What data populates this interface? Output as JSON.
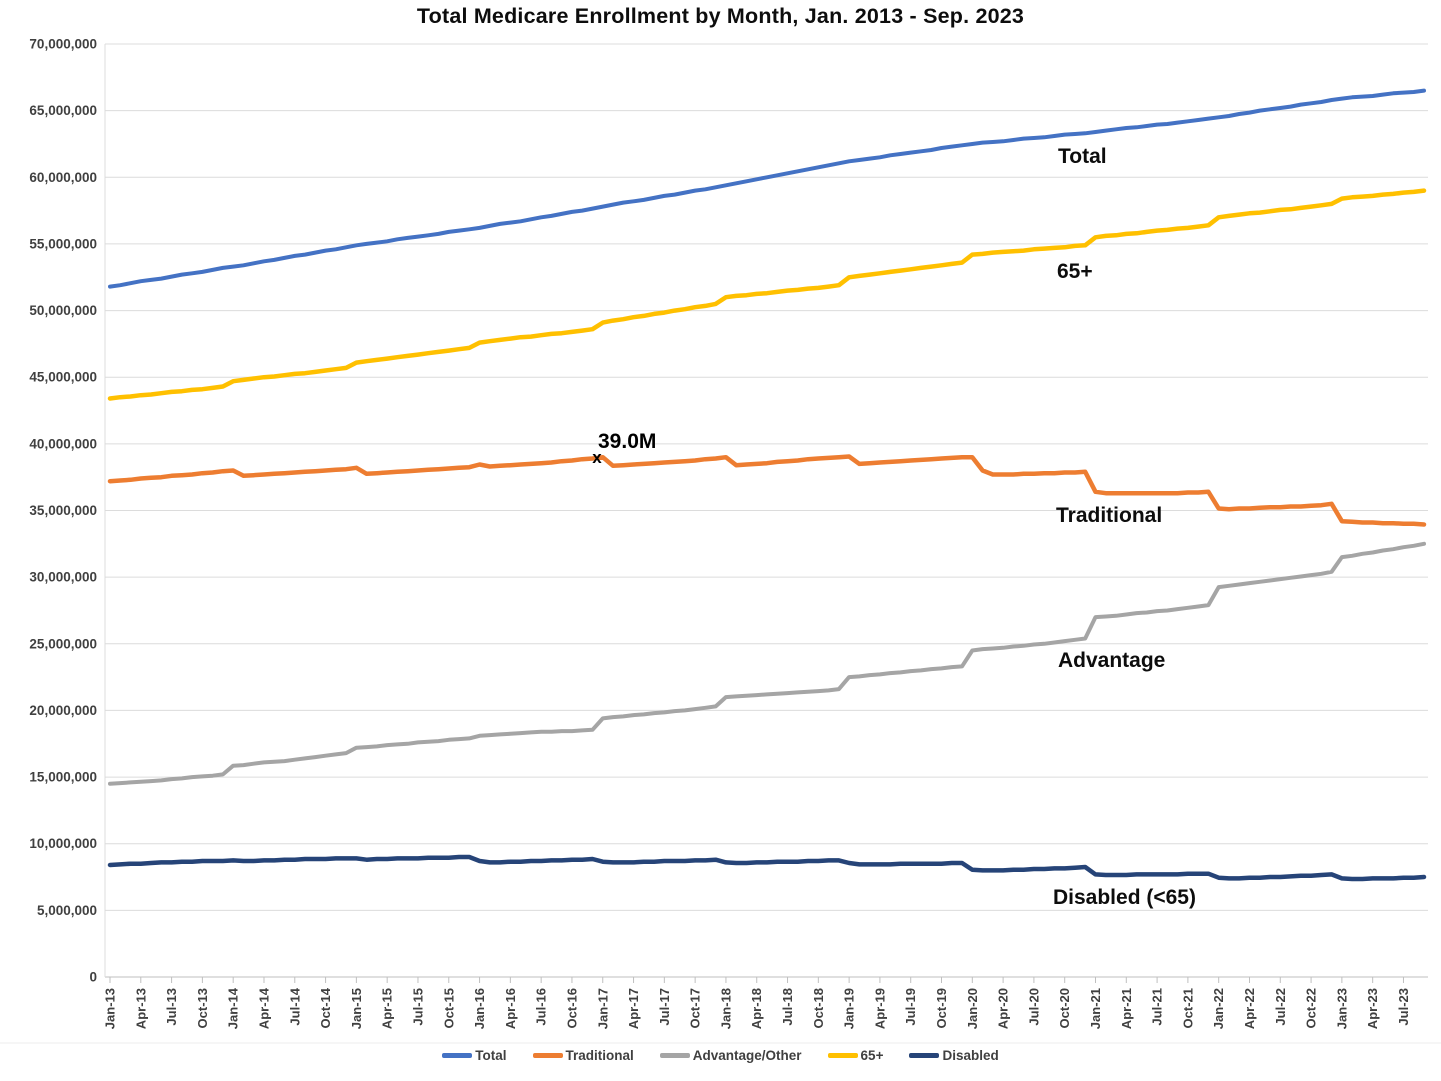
{
  "title": "Total Medicare Enrollment by Month, Jan. 2013 - Sep. 2023",
  "annotation": {
    "label": "39.0M",
    "marker_glyph": "x",
    "series": "Traditional",
    "month": "Jan-17",
    "value": 39.0
  },
  "y_axis": {
    "tick_labels": [
      "0",
      "5,000,000",
      "10,000,000",
      "15,000,000",
      "20,000,000",
      "25,000,000",
      "30,000,000",
      "35,000,000",
      "40,000,000",
      "45,000,000",
      "50,000,000",
      "55,000,000",
      "60,000,000",
      "65,000,000",
      "70,000,000"
    ]
  },
  "x_axis": {
    "tick_labels": [
      "Jan-13",
      "Apr-13",
      "Jul-13",
      "Oct-13",
      "Jan-14",
      "Apr-14",
      "Jul-14",
      "Oct-14",
      "Jan-15",
      "Apr-15",
      "Jul-15",
      "Oct-15",
      "Jan-16",
      "Apr-16",
      "Jul-16",
      "Oct-16",
      "Jan-17",
      "Apr-17",
      "Jul-17",
      "Oct-17",
      "Jan-18",
      "Apr-18",
      "Jul-18",
      "Oct-18",
      "Jan-19",
      "Apr-19",
      "Jul-19",
      "Oct-19",
      "Jan-20",
      "Apr-20",
      "Jul-20",
      "Oct-20",
      "Jan-21",
      "Apr-21",
      "Jul-21",
      "Oct-21",
      "Jan-22",
      "Apr-22",
      "Jul-22",
      "Oct-22",
      "Jan-23",
      "Apr-23",
      "Jul-23"
    ]
  },
  "legend": {
    "items": [
      {
        "label": "Total",
        "color": "#4472C4"
      },
      {
        "label": "Traditional",
        "color": "#ED7D31"
      },
      {
        "label": "Advantage/Other",
        "color": "#A5A5A5"
      },
      {
        "label": "65+",
        "color": "#FFC000"
      },
      {
        "label": "Disabled",
        "color": "#264478"
      }
    ]
  },
  "inline_labels": [
    {
      "series": "Total",
      "text": "Total"
    },
    {
      "series": "65+",
      "text": "65+"
    },
    {
      "series": "Traditional",
      "text": "Traditional"
    },
    {
      "series": "Advantage/Other",
      "text": "Advantage"
    },
    {
      "series": "Disabled",
      "text": "Disabled (<65)"
    }
  ],
  "chart_data": {
    "type": "line",
    "title": "Total Medicare Enrollment by Month, Jan. 2013 - Sep. 2023",
    "x_start": "Jan-2013",
    "x_end": "Sep-2023",
    "frequency": "monthly",
    "units": "persons (millions)",
    "ylim": [
      0,
      70000000
    ],
    "grid": "horizontal",
    "legend_position": "bottom",
    "series": [
      {
        "name": "Total",
        "color": "#4472C4",
        "values_millions": [
          51.8,
          51.9,
          52.05,
          52.2,
          52.3,
          52.4,
          52.55,
          52.7,
          52.8,
          52.9,
          53.05,
          53.2,
          53.3,
          53.4,
          53.55,
          53.7,
          53.8,
          53.95,
          54.1,
          54.2,
          54.35,
          54.5,
          54.6,
          54.75,
          54.9,
          55.0,
          55.1,
          55.2,
          55.35,
          55.45,
          55.55,
          55.65,
          55.75,
          55.9,
          56.0,
          56.1,
          56.2,
          56.35,
          56.5,
          56.6,
          56.7,
          56.85,
          57.0,
          57.1,
          57.25,
          57.4,
          57.5,
          57.65,
          57.8,
          57.95,
          58.1,
          58.2,
          58.3,
          58.45,
          58.6,
          58.7,
          58.85,
          59.0,
          59.1,
          59.25,
          59.4,
          59.55,
          59.7,
          59.85,
          60.0,
          60.15,
          60.3,
          60.45,
          60.6,
          60.75,
          60.9,
          61.05,
          61.2,
          61.3,
          61.4,
          61.5,
          61.65,
          61.75,
          61.85,
          61.95,
          62.05,
          62.2,
          62.3,
          62.4,
          62.5,
          62.6,
          62.65,
          62.7,
          62.8,
          62.9,
          62.95,
          63.0,
          63.1,
          63.2,
          63.25,
          63.3,
          63.4,
          63.5,
          63.6,
          63.7,
          63.75,
          63.85,
          63.95,
          64.0,
          64.1,
          64.2,
          64.3,
          64.4,
          64.5,
          64.6,
          64.75,
          64.85,
          65.0,
          65.1,
          65.2,
          65.3,
          65.45,
          65.55,
          65.65,
          65.8,
          65.9,
          66.0,
          66.05,
          66.1,
          66.2,
          66.3,
          66.35,
          66.4,
          66.5
        ]
      },
      {
        "name": "65+",
        "color": "#FFC000",
        "values_millions": [
          43.4,
          43.5,
          43.55,
          43.65,
          43.7,
          43.8,
          43.9,
          43.95,
          44.05,
          44.1,
          44.2,
          44.3,
          44.7,
          44.8,
          44.9,
          45.0,
          45.05,
          45.15,
          45.25,
          45.3,
          45.4,
          45.5,
          45.6,
          45.7,
          46.1,
          46.2,
          46.3,
          46.4,
          46.5,
          46.6,
          46.7,
          46.8,
          46.9,
          47.0,
          47.1,
          47.2,
          47.6,
          47.7,
          47.8,
          47.9,
          48.0,
          48.05,
          48.15,
          48.25,
          48.3,
          48.4,
          48.5,
          48.6,
          49.1,
          49.25,
          49.35,
          49.5,
          49.6,
          49.75,
          49.85,
          50.0,
          50.1,
          50.25,
          50.35,
          50.5,
          51.0,
          51.1,
          51.15,
          51.25,
          51.3,
          51.4,
          51.5,
          51.55,
          51.65,
          51.7,
          51.8,
          51.9,
          52.5,
          52.6,
          52.7,
          52.8,
          52.9,
          53.0,
          53.1,
          53.2,
          53.3,
          53.4,
          53.5,
          53.6,
          54.2,
          54.25,
          54.35,
          54.4,
          54.45,
          54.5,
          54.6,
          54.65,
          54.7,
          54.75,
          54.85,
          54.9,
          55.5,
          55.6,
          55.65,
          55.75,
          55.8,
          55.9,
          56.0,
          56.05,
          56.15,
          56.2,
          56.3,
          56.4,
          57.0,
          57.1,
          57.2,
          57.3,
          57.35,
          57.45,
          57.55,
          57.6,
          57.7,
          57.8,
          57.9,
          58.0,
          58.4,
          58.5,
          58.55,
          58.6,
          58.7,
          58.75,
          58.85,
          58.9,
          59.0
        ]
      },
      {
        "name": "Traditional",
        "color": "#ED7D31",
        "values_millions": [
          37.2,
          37.25,
          37.3,
          37.4,
          37.45,
          37.5,
          37.6,
          37.65,
          37.7,
          37.8,
          37.85,
          37.95,
          38.0,
          37.6,
          37.65,
          37.7,
          37.75,
          37.8,
          37.85,
          37.9,
          37.95,
          38.0,
          38.05,
          38.1,
          38.2,
          37.75,
          37.8,
          37.85,
          37.9,
          37.95,
          38.0,
          38.05,
          38.1,
          38.15,
          38.2,
          38.25,
          38.45,
          38.3,
          38.35,
          38.4,
          38.45,
          38.5,
          38.55,
          38.6,
          38.7,
          38.75,
          38.85,
          38.9,
          39.0,
          38.35,
          38.4,
          38.45,
          38.5,
          38.55,
          38.6,
          38.65,
          38.7,
          38.75,
          38.85,
          38.9,
          39.0,
          38.4,
          38.45,
          38.5,
          38.55,
          38.65,
          38.7,
          38.75,
          38.85,
          38.9,
          38.95,
          39.0,
          39.05,
          38.5,
          38.55,
          38.6,
          38.65,
          38.7,
          38.75,
          38.8,
          38.85,
          38.9,
          38.95,
          39.0,
          39.0,
          38.0,
          37.7,
          37.7,
          37.7,
          37.75,
          37.75,
          37.8,
          37.8,
          37.85,
          37.85,
          37.9,
          36.4,
          36.3,
          36.3,
          36.3,
          36.3,
          36.3,
          36.3,
          36.3,
          36.3,
          36.35,
          36.35,
          36.4,
          35.15,
          35.1,
          35.15,
          35.15,
          35.2,
          35.25,
          35.25,
          35.3,
          35.3,
          35.35,
          35.4,
          35.5,
          34.2,
          34.15,
          34.1,
          34.1,
          34.05,
          34.05,
          34.0,
          34.0,
          33.95
        ]
      },
      {
        "name": "Advantage/Other",
        "color": "#A5A5A5",
        "values_millions": [
          14.5,
          14.55,
          14.6,
          14.65,
          14.7,
          14.75,
          14.85,
          14.9,
          15.0,
          15.05,
          15.1,
          15.2,
          15.85,
          15.9,
          16.0,
          16.1,
          16.15,
          16.2,
          16.3,
          16.4,
          16.5,
          16.6,
          16.7,
          16.8,
          17.2,
          17.25,
          17.3,
          17.4,
          17.45,
          17.5,
          17.6,
          17.65,
          17.7,
          17.8,
          17.85,
          17.9,
          18.1,
          18.15,
          18.2,
          18.25,
          18.3,
          18.35,
          18.4,
          18.4,
          18.45,
          18.45,
          18.5,
          18.55,
          19.4,
          19.5,
          19.55,
          19.65,
          19.7,
          19.8,
          19.85,
          19.95,
          20.0,
          20.1,
          20.2,
          20.3,
          21.0,
          21.05,
          21.1,
          21.15,
          21.2,
          21.25,
          21.3,
          21.35,
          21.4,
          21.45,
          21.5,
          21.6,
          22.5,
          22.55,
          22.65,
          22.7,
          22.8,
          22.85,
          22.95,
          23.0,
          23.1,
          23.15,
          23.25,
          23.3,
          24.5,
          24.6,
          24.65,
          24.7,
          24.8,
          24.85,
          24.95,
          25.0,
          25.1,
          25.2,
          25.3,
          25.4,
          27.0,
          27.05,
          27.1,
          27.2,
          27.3,
          27.35,
          27.45,
          27.5,
          27.6,
          27.7,
          27.8,
          27.9,
          29.25,
          29.35,
          29.45,
          29.55,
          29.65,
          29.75,
          29.85,
          29.95,
          30.05,
          30.15,
          30.25,
          30.4,
          31.5,
          31.6,
          31.75,
          31.85,
          32.0,
          32.1,
          32.25,
          32.35,
          32.5
        ]
      },
      {
        "name": "Disabled",
        "color": "#264478",
        "values_millions": [
          8.4,
          8.45,
          8.5,
          8.5,
          8.55,
          8.6,
          8.6,
          8.65,
          8.65,
          8.7,
          8.7,
          8.7,
          8.75,
          8.7,
          8.7,
          8.75,
          8.75,
          8.8,
          8.8,
          8.85,
          8.85,
          8.85,
          8.9,
          8.9,
          8.9,
          8.8,
          8.85,
          8.85,
          8.9,
          8.9,
          8.9,
          8.95,
          8.95,
          8.95,
          9.0,
          9.0,
          8.7,
          8.6,
          8.6,
          8.65,
          8.65,
          8.7,
          8.7,
          8.75,
          8.75,
          8.8,
          8.8,
          8.85,
          8.65,
          8.6,
          8.6,
          8.6,
          8.65,
          8.65,
          8.7,
          8.7,
          8.7,
          8.75,
          8.75,
          8.8,
          8.6,
          8.55,
          8.55,
          8.6,
          8.6,
          8.65,
          8.65,
          8.65,
          8.7,
          8.7,
          8.75,
          8.75,
          8.55,
          8.45,
          8.45,
          8.45,
          8.45,
          8.5,
          8.5,
          8.5,
          8.5,
          8.5,
          8.55,
          8.55,
          8.05,
          8.0,
          8.0,
          8.0,
          8.05,
          8.05,
          8.1,
          8.1,
          8.15,
          8.15,
          8.2,
          8.25,
          7.7,
          7.65,
          7.65,
          7.65,
          7.7,
          7.7,
          7.7,
          7.7,
          7.7,
          7.75,
          7.75,
          7.75,
          7.45,
          7.4,
          7.4,
          7.45,
          7.45,
          7.5,
          7.5,
          7.55,
          7.6,
          7.6,
          7.65,
          7.7,
          7.4,
          7.35,
          7.35,
          7.4,
          7.4,
          7.4,
          7.45,
          7.45,
          7.5
        ]
      }
    ]
  }
}
